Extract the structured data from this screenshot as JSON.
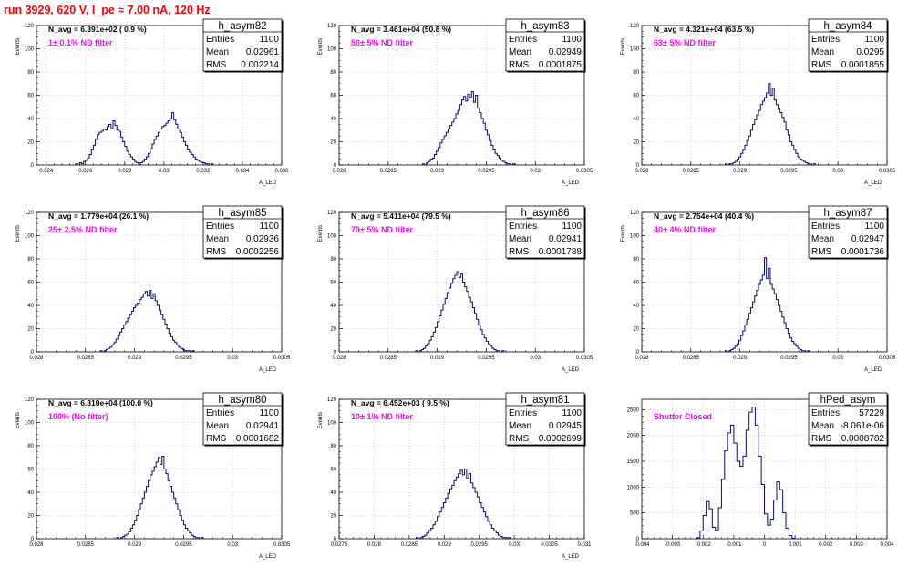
{
  "page": {
    "title": "run 3929,   620 V, I_pe ≈ 7.00 nA, 120 Hz"
  },
  "chart_data": [
    {
      "type": "histogram",
      "name": "h_asym82",
      "n_avg": "N_avg = 6.391e+02 ( 0.9 %)",
      "annotation": "1± 0.1% ND filter",
      "stats": {
        "entries": "1100",
        "mean": "0.02961",
        "rms": "0.002214"
      },
      "ylabel": "Events",
      "xlabel": "A_LED",
      "xlim": [
        0.0235,
        0.036
      ],
      "ylim": [
        0,
        120
      ],
      "xticks": [
        0.024,
        0.026,
        0.028,
        0.03,
        0.032,
        0.034,
        0.036
      ],
      "xtick_labels": [
        "0.024",
        "0.026",
        "0.028",
        "0.03",
        "0.032",
        "0.034",
        "0.036"
      ],
      "yticks": [
        0,
        20,
        40,
        60,
        80,
        100,
        120
      ],
      "bins": {
        "start": 0.0255,
        "width": 0.0001,
        "counts": [
          1,
          0,
          2,
          1,
          3,
          4,
          6,
          9,
          13,
          17,
          22,
          26,
          28,
          29,
          31,
          30,
          33,
          35,
          31,
          38,
          34,
          30,
          29,
          24,
          20,
          16,
          12,
          9,
          7,
          5,
          3,
          2,
          1,
          2,
          3,
          5,
          7,
          10,
          14,
          18,
          22,
          25,
          28,
          31,
          33,
          34,
          36,
          38,
          40,
          45,
          39,
          35,
          31,
          28,
          24,
          20,
          17,
          13,
          11,
          9,
          7,
          5,
          4,
          3,
          2,
          2,
          1,
          1,
          0,
          1
        ]
      }
    },
    {
      "type": "histogram",
      "name": "h_asym83",
      "n_avg": "N_avg = 3.461e+04 (50.8 %)",
      "annotation": "50± 5% ND filter",
      "stats": {
        "entries": "1100",
        "mean": "0.02949",
        "rms": "0.0001875"
      },
      "ylabel": "Events",
      "xlabel": "A_LED",
      "xlim": [
        0.028,
        0.0305
      ],
      "ylim": [
        0,
        120
      ],
      "xticks": [
        0.028,
        0.0285,
        0.029,
        0.0295,
        0.03,
        0.0305
      ],
      "xtick_labels": [
        "0.028",
        "0.0285",
        "0.029",
        "0.0295",
        "0.03",
        "0.0305"
      ],
      "yticks": [
        0,
        20,
        40,
        60,
        80,
        100,
        120
      ],
      "bins": {
        "start": 0.02885,
        "width": 2e-05,
        "counts": [
          1,
          0,
          2,
          3,
          5,
          6,
          9,
          12,
          15,
          19,
          22,
          25,
          28,
          31,
          34,
          37,
          40,
          44,
          47,
          52,
          56,
          59,
          55,
          61,
          58,
          63,
          54,
          60,
          49,
          45,
          40,
          36,
          30,
          26,
          21,
          17,
          13,
          10,
          8,
          6,
          4,
          3,
          2,
          1,
          1,
          0,
          1
        ]
      }
    },
    {
      "type": "histogram",
      "name": "h_asym84",
      "n_avg": "N_avg = 4.321e+04 (63.5 %)",
      "annotation": "63± 5% ND filter",
      "stats": {
        "entries": "1100",
        "mean": "0.0295",
        "rms": "0.0001855"
      },
      "ylabel": "Events",
      "xlabel": "A_LED",
      "xlim": [
        0.028,
        0.0305
      ],
      "ylim": [
        0,
        120
      ],
      "xticks": [
        0.028,
        0.0285,
        0.029,
        0.0295,
        0.03,
        0.0305
      ],
      "xtick_labels": [
        "0.028",
        "0.0285",
        "0.029",
        "0.0295",
        "0.03",
        "0.0305"
      ],
      "yticks": [
        0,
        20,
        40,
        60,
        80,
        100,
        120
      ],
      "bins": {
        "start": 0.02885,
        "width": 2e-05,
        "counts": [
          1,
          0,
          1,
          1,
          2,
          3,
          5,
          7,
          10,
          13,
          17,
          21,
          25,
          30,
          35,
          39,
          43,
          47,
          52,
          55,
          58,
          62,
          70,
          60,
          66,
          56,
          52,
          48,
          45,
          41,
          37,
          30,
          26,
          20,
          17,
          13,
          10,
          7,
          5,
          4,
          3,
          2,
          1,
          1,
          0,
          1
        ]
      }
    },
    {
      "type": "histogram",
      "name": "h_asym85",
      "n_avg": "N_avg = 1.779e+04 (26.1 %)",
      "annotation": "25± 2.5% ND filter",
      "stats": {
        "entries": "1100",
        "mean": "0.02936",
        "rms": "0.0002256"
      },
      "ylabel": "Events",
      "xlabel": "A_LED",
      "xlim": [
        0.028,
        0.0305
      ],
      "ylim": [
        0,
        120
      ],
      "xticks": [
        0.028,
        0.0285,
        0.029,
        0.0295,
        0.03,
        0.0305
      ],
      "xtick_labels": [
        "0.028",
        "0.0285",
        "0.029",
        "0.0295",
        "0.03",
        "0.0305"
      ],
      "yticks": [
        0,
        20,
        40,
        60,
        80,
        100,
        120
      ],
      "bins": {
        "start": 0.02865,
        "width": 2e-05,
        "counts": [
          1,
          0,
          1,
          2,
          3,
          4,
          6,
          8,
          11,
          14,
          17,
          20,
          23,
          26,
          29,
          32,
          35,
          38,
          40,
          42,
          45,
          47,
          50,
          52,
          48,
          53,
          46,
          50,
          44,
          40,
          36,
          32,
          28,
          24,
          20,
          16,
          13,
          10,
          8,
          6,
          4,
          3,
          2,
          1,
          1,
          1,
          0,
          1
        ]
      }
    },
    {
      "type": "histogram",
      "name": "h_asym86",
      "n_avg": "N_avg = 5.411e+04 (79.5 %)",
      "annotation": "79± 5% ND filter",
      "stats": {
        "entries": "1100",
        "mean": "0.02941",
        "rms": "0.0001788"
      },
      "ylabel": "Events",
      "xlabel": "A_LED",
      "xlim": [
        0.028,
        0.0305
      ],
      "ylim": [
        0,
        120
      ],
      "xticks": [
        0.028,
        0.0285,
        0.029,
        0.0295,
        0.03,
        0.0305
      ],
      "xtick_labels": [
        "0.028",
        "0.0285",
        "0.029",
        "0.0295",
        "0.03",
        "0.0305"
      ],
      "yticks": [
        0,
        20,
        40,
        60,
        80,
        100,
        120
      ],
      "bins": {
        "start": 0.02878,
        "width": 2e-05,
        "counts": [
          1,
          0,
          1,
          2,
          3,
          5,
          7,
          10,
          13,
          17,
          21,
          26,
          31,
          36,
          41,
          46,
          51,
          55,
          59,
          63,
          66,
          69,
          64,
          67,
          60,
          56,
          52,
          47,
          43,
          38,
          33,
          28,
          23,
          19,
          15,
          12,
          9,
          7,
          5,
          3,
          2,
          1,
          1,
          0,
          1
        ]
      }
    },
    {
      "type": "histogram",
      "name": "h_asym87",
      "n_avg": "N_avg = 2.754e+04 (40.4 %)",
      "annotation": "40± 4% ND filter",
      "stats": {
        "entries": "1100",
        "mean": "0.02947",
        "rms": "0.0001736"
      },
      "ylabel": "Events",
      "xlabel": "A_LED",
      "xlim": [
        0.028,
        0.0305
      ],
      "ylim": [
        0,
        120
      ],
      "xticks": [
        0.028,
        0.0285,
        0.029,
        0.0295,
        0.03,
        0.0305
      ],
      "xtick_labels": [
        "0.028",
        "0.0285",
        "0.029",
        "0.0295",
        "0.03",
        "0.0305"
      ],
      "yticks": [
        0,
        20,
        40,
        60,
        80,
        100,
        120
      ],
      "bins": {
        "start": 0.02885,
        "width": 2e-05,
        "counts": [
          1,
          0,
          1,
          2,
          3,
          5,
          7,
          10,
          14,
          18,
          23,
          28,
          33,
          38,
          43,
          48,
          53,
          58,
          62,
          66,
          81,
          63,
          72,
          58,
          54,
          50,
          45,
          40,
          35,
          30,
          25,
          20,
          16,
          12,
          9,
          7,
          5,
          3,
          2,
          1,
          1,
          0,
          1
        ]
      }
    },
    {
      "type": "histogram",
      "name": "h_asym80",
      "n_avg": "N_avg = 6.810e+04 (100.0 %)",
      "annotation": "100% (No filter)",
      "stats": {
        "entries": "1100",
        "mean": "0.02941",
        "rms": "0.0001682"
      },
      "ylabel": "Events",
      "xlabel": "A_LED",
      "xlim": [
        0.028,
        0.0305
      ],
      "ylim": [
        0,
        120
      ],
      "xticks": [
        0.028,
        0.0285,
        0.029,
        0.0295,
        0.03,
        0.0305
      ],
      "xtick_labels": [
        "0.028",
        "0.0285",
        "0.029",
        "0.0295",
        "0.03",
        "0.0305"
      ],
      "yticks": [
        0,
        20,
        40,
        60,
        80,
        100,
        120
      ],
      "bins": {
        "start": 0.02882,
        "width": 2e-05,
        "counts": [
          1,
          0,
          1,
          2,
          3,
          4,
          6,
          9,
          12,
          16,
          20,
          25,
          30,
          35,
          40,
          45,
          50,
          55,
          58,
          62,
          66,
          70,
          64,
          71,
          60,
          56,
          50,
          45,
          40,
          35,
          30,
          25,
          20,
          16,
          12,
          9,
          7,
          5,
          3,
          2,
          1,
          1,
          0,
          1
        ]
      }
    },
    {
      "type": "histogram",
      "name": "h_asym81",
      "n_avg": "N_avg = 6.452e+03 ( 9.5 %)",
      "annotation": "10± 1% ND filter",
      "stats": {
        "entries": "1100",
        "mean": "0.02945",
        "rms": "0.0002699"
      },
      "ylabel": "Events",
      "xlabel": "A_LED",
      "xlim": [
        0.0275,
        0.031
      ],
      "ylim": [
        0,
        120
      ],
      "xticks": [
        0.0275,
        0.028,
        0.0285,
        0.029,
        0.0295,
        0.03,
        0.0305,
        0.031
      ],
      "xtick_labels": [
        "0.0275",
        "0.028",
        "0.0285",
        "0.029",
        "0.0295",
        "0.03",
        "0.0305",
        "0.031"
      ],
      "yticks": [
        0,
        20,
        40,
        60,
        80,
        100,
        120
      ],
      "bins": {
        "start": 0.0286,
        "width": 3e-05,
        "counts": [
          1,
          0,
          1,
          2,
          3,
          5,
          7,
          9,
          12,
          15,
          19,
          23,
          27,
          31,
          35,
          39,
          43,
          46,
          50,
          53,
          56,
          59,
          55,
          60,
          52,
          56,
          48,
          44,
          40,
          36,
          31,
          27,
          23,
          19,
          15,
          12,
          9,
          7,
          5,
          3,
          2,
          1,
          1,
          0,
          1
        ]
      }
    },
    {
      "type": "histogram",
      "name": "hPed_asym",
      "n_avg": "",
      "annotation": "Shutter Closed",
      "stats": {
        "entries": "57229",
        "mean": "-8.061e-06",
        "rms": "0.0008782"
      },
      "ylabel": "",
      "xlabel": "",
      "xlim": [
        -0.004,
        0.004
      ],
      "ylim": [
        0,
        2700
      ],
      "xticks": [
        -0.004,
        -0.003,
        -0.002,
        -0.001,
        0,
        0.001,
        0.002,
        0.003,
        0.004
      ],
      "xtick_labels": [
        "-0.004",
        "-0.003",
        "-0.002",
        "-0.001",
        "0",
        "0.001",
        "0.002",
        "0.003",
        "0.004"
      ],
      "yticks": [
        0,
        500,
        1000,
        1500,
        2000,
        2500
      ],
      "bins": {
        "start": -0.0022,
        "width": 0.0001,
        "counts": [
          20,
          150,
          450,
          720,
          580,
          220,
          160,
          600,
          1150,
          1700,
          2050,
          2200,
          1850,
          1500,
          1400,
          1600,
          2100,
          2450,
          2550,
          2200,
          1600,
          1050,
          480,
          260,
          380,
          750,
          1100,
          950,
          500,
          200,
          60,
          10
        ]
      }
    }
  ]
}
